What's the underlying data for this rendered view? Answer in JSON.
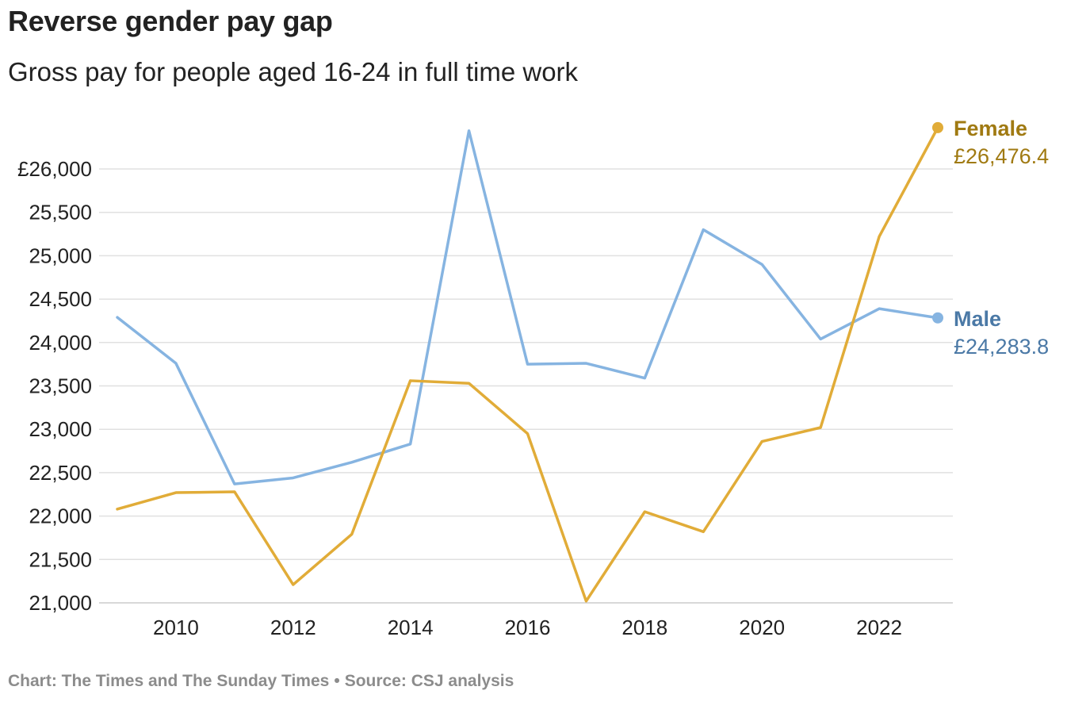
{
  "header": {
    "title": "Reverse gender pay gap",
    "subtitle": "Gross pay for people aged 16-24 in full time work"
  },
  "footer": {
    "credit": "Chart: The Times and The Sunday Times",
    "separator": "•",
    "source": "Source: CSJ analysis"
  },
  "chart_data": {
    "type": "line",
    "title": "Reverse gender pay gap",
    "subtitle": "Gross pay for people aged 16-24 in full time work",
    "xlabel": "",
    "ylabel": "",
    "x": [
      2009,
      2010,
      2011,
      2012,
      2013,
      2014,
      2015,
      2016,
      2017,
      2018,
      2019,
      2020,
      2021,
      2022,
      2023
    ],
    "xticks": [
      2010,
      2012,
      2014,
      2016,
      2018,
      2020,
      2022
    ],
    "xlim": [
      2009,
      2023
    ],
    "yticks": [
      21000,
      21500,
      22000,
      22500,
      23000,
      23500,
      24000,
      24500,
      25000,
      25500,
      26000
    ],
    "ytick_labels": [
      "21,000",
      "21,500",
      "22,000",
      "22,500",
      "23,000",
      "23,500",
      "24,000",
      "24,500",
      "25,000",
      "25,500",
      "£26,000"
    ],
    "ylim": [
      21000,
      26000
    ],
    "grid": true,
    "legend": "direct labels at line ends",
    "series": [
      {
        "name": "Female",
        "end_label": "£26,476.4",
        "color": "#e1ac38",
        "label_color": "#a07a12",
        "values": [
          22080,
          22270,
          22280,
          21210,
          21790,
          23560,
          23530,
          22950,
          21020,
          22050,
          21820,
          22860,
          23020,
          25220,
          26476.4
        ]
      },
      {
        "name": "Male",
        "end_label": "£24,283.8",
        "color": "#86b4e1",
        "label_color": "#4b79a6",
        "values": [
          24290,
          23760,
          22370,
          22440,
          22620,
          22830,
          26440,
          23750,
          23760,
          23590,
          25300,
          24900,
          24040,
          24390,
          24283.8
        ]
      }
    ]
  }
}
